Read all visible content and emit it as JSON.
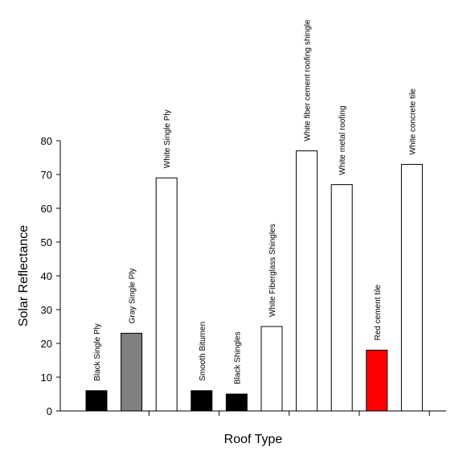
{
  "chart_data": {
    "type": "bar",
    "xlabel": "Roof Type",
    "ylabel": "Solar Reflectance",
    "ylim": [
      0,
      80
    ],
    "yticks": [
      0,
      10,
      20,
      30,
      40,
      50,
      60,
      70,
      80
    ],
    "grid": false,
    "categories": [
      "Black Single Ply",
      "Gray Single Ply",
      "White Single Ply",
      "Smooth Bitumen",
      "Black Shingles",
      "White Fiberglass Shingles",
      "White fiber cement roofing shingle",
      "White metal roofing",
      "Red cement tile",
      "White concrete tile"
    ],
    "values": [
      6,
      23,
      69,
      6,
      5,
      25,
      77,
      67,
      18,
      73
    ],
    "colors": [
      "#000000",
      "#808080",
      "#ffffff",
      "#000000",
      "#000000",
      "#ffffff",
      "#ffffff",
      "#ffffff",
      "#ff0000",
      "#ffffff"
    ]
  }
}
